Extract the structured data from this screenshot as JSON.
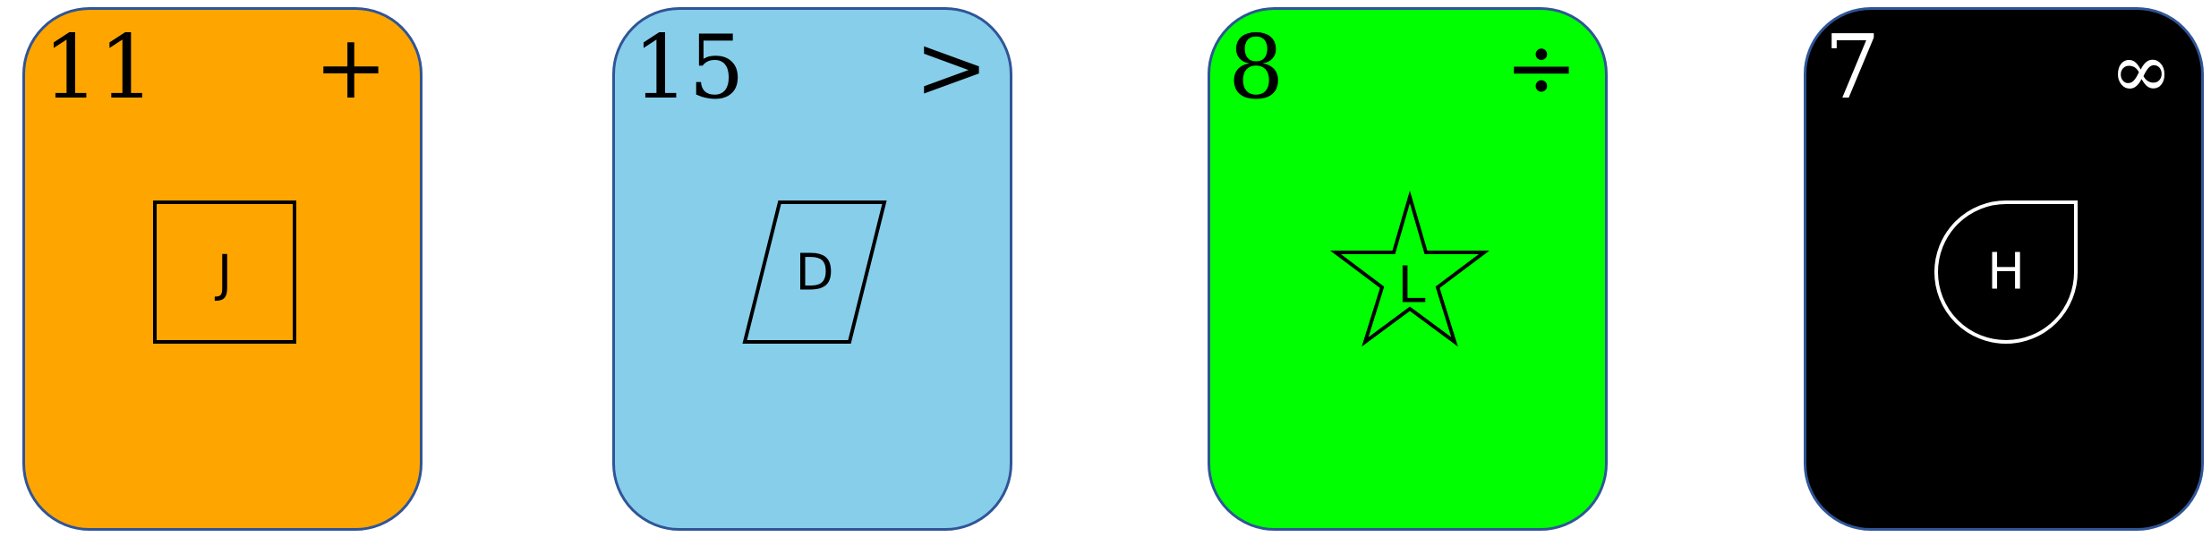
{
  "cards": [
    {
      "number": "11",
      "symbol": "+",
      "shape": "square",
      "letter": "J",
      "colors": {
        "fill": "#ffa500",
        "ink": "#000000",
        "border": "#2f5597"
      }
    },
    {
      "number": "15",
      "symbol": ">",
      "shape": "parallelogram",
      "letter": "D",
      "colors": {
        "fill": "#87ceeb",
        "ink": "#000000",
        "border": "#2f5597"
      }
    },
    {
      "number": "8",
      "symbol": "÷",
      "shape": "star",
      "letter": "L",
      "colors": {
        "fill": "#00ff00",
        "ink": "#000000",
        "border": "#2f5597"
      }
    },
    {
      "number": "7",
      "symbol": "∞",
      "shape": "teardrop",
      "letter": "H",
      "colors": {
        "fill": "#000000",
        "ink": "#ffffff",
        "border": "#2f5597"
      }
    }
  ]
}
